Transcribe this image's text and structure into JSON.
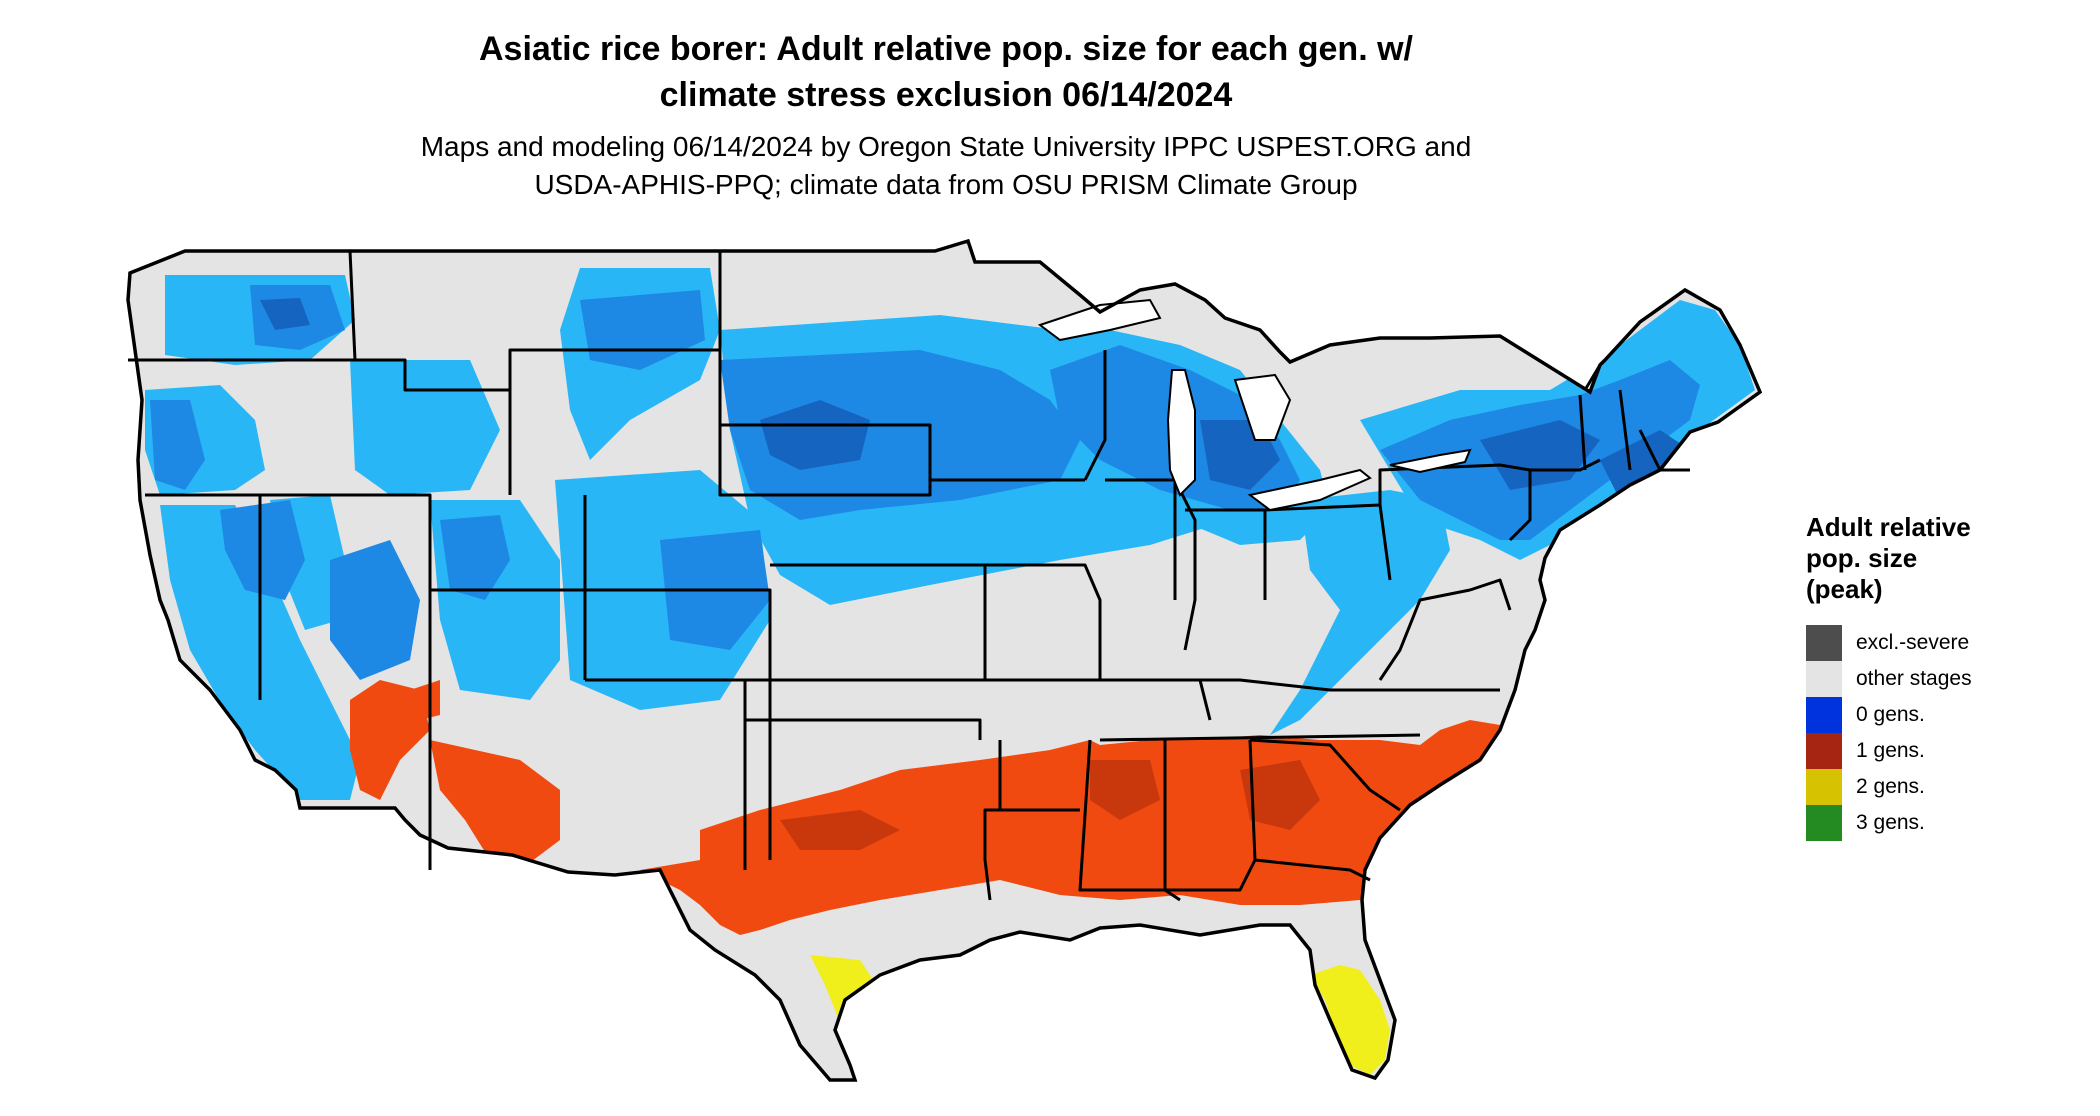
{
  "title": {
    "line1": "Asiatic rice borer: Adult relative pop. size for each gen. w/",
    "line2": "climate stress exclusion 06/14/2024"
  },
  "subtitle": {
    "line1": "Maps and modeling 06/14/2024 by Oregon State University IPPC USPEST.ORG and",
    "line2": "USDA-APHIS-PPQ; climate data from OSU PRISM Climate Group"
  },
  "legend": {
    "title_lines": [
      "Adult relative",
      "pop. size",
      "(peak)"
    ],
    "items": [
      {
        "label": "excl.-severe",
        "color": "#4d4d4d"
      },
      {
        "label": "other stages",
        "color": "#e4e4e4"
      },
      {
        "label": "0 gens.",
        "color": "#0033dd"
      },
      {
        "label": "1 gens.",
        "color": "#a52512"
      },
      {
        "label": "2 gens.",
        "color": "#d6c200"
      },
      {
        "label": "3 gens.",
        "color": "#238b22"
      }
    ]
  },
  "map_colors": {
    "land": "#e4e4e4",
    "light_blue": "#29b6f6",
    "mid_blue": "#1e88e5",
    "dark_blue": "#1565c0",
    "orange": "#f04a10",
    "dark_orange": "#c8380c",
    "yellow": "#f0ef1c",
    "border": "#000000"
  }
}
